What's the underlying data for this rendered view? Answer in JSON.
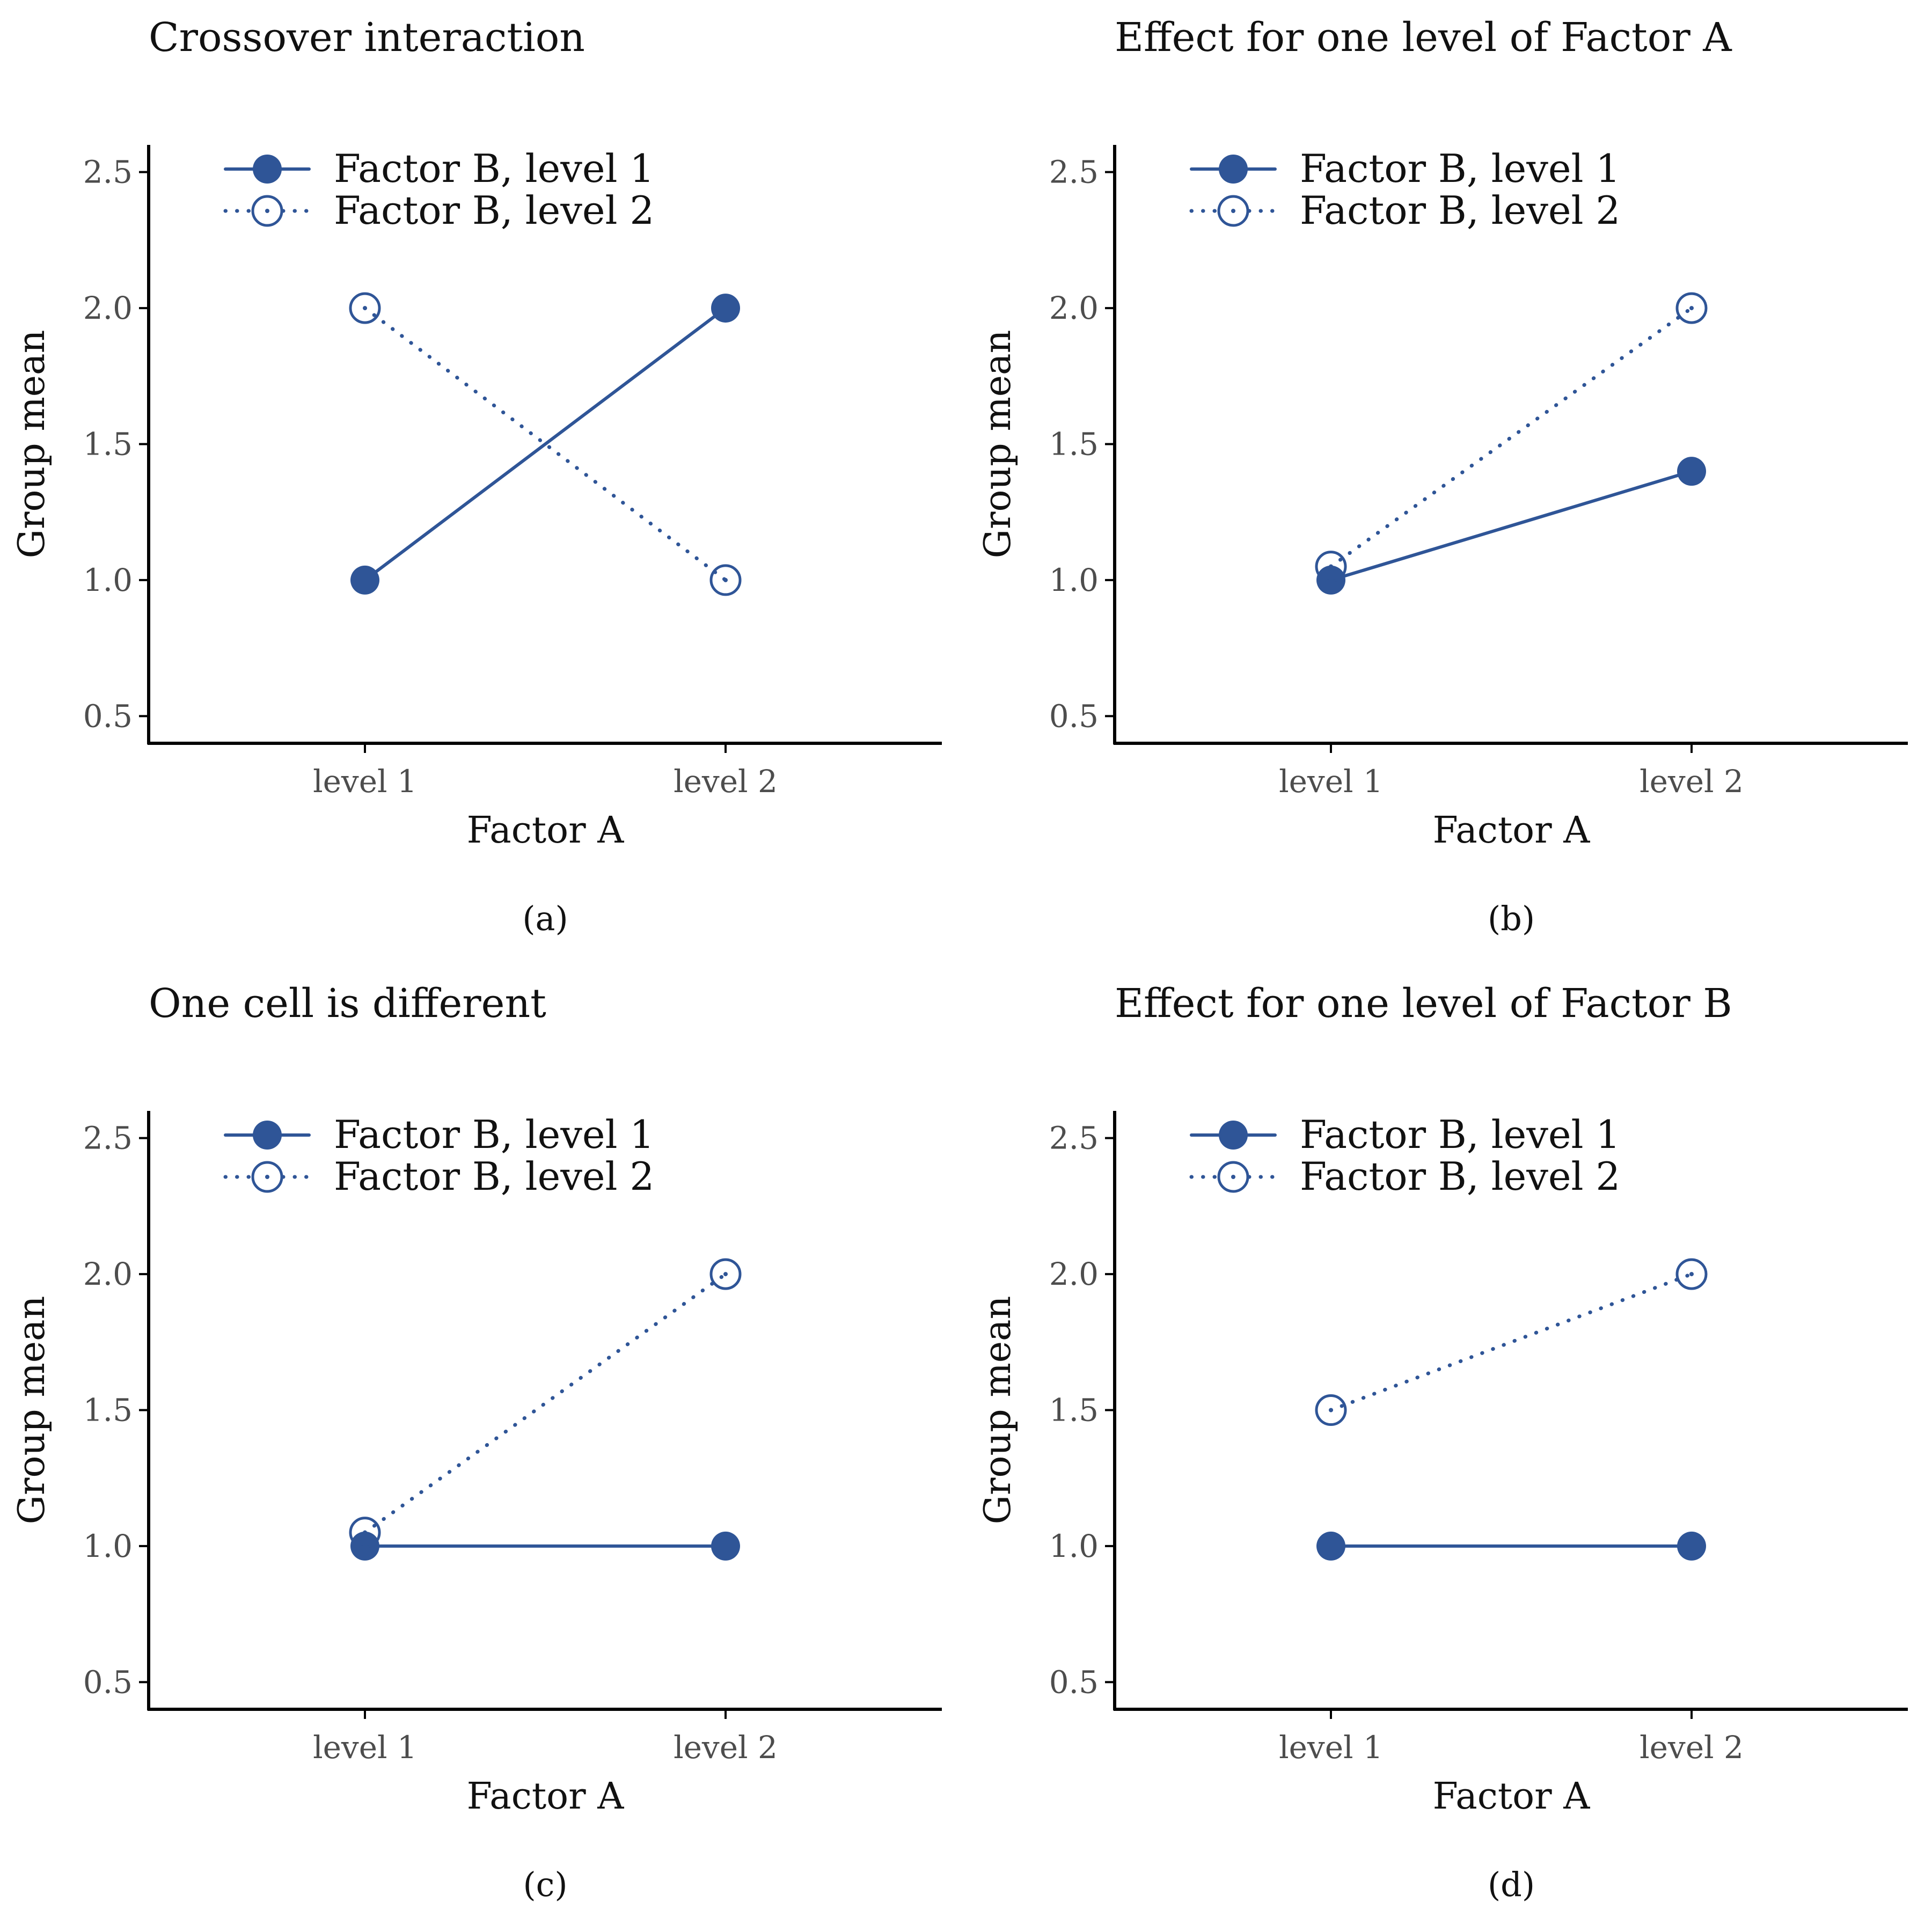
{
  "style": {
    "series_color": "#2f5597",
    "axis_color": "#000000"
  },
  "chart_data": [
    {
      "type": "line",
      "title": "Crossover interaction",
      "caption": "(a)",
      "xlabel": "Factor A",
      "ylabel": "Group mean",
      "categories": [
        "level 1",
        "level 2"
      ],
      "ylim": [
        0.4,
        2.6
      ],
      "yticks": [
        "0.5",
        "1.0",
        "1.5",
        "2.0",
        "2.5"
      ],
      "legend_position": "top-left",
      "series": [
        {
          "name": "Factor B, level 1",
          "values": [
            1.0,
            2.0
          ],
          "line": "solid",
          "marker": "filled-circle"
        },
        {
          "name": "Factor B, level 2",
          "values": [
            2.0,
            1.0
          ],
          "line": "dotted",
          "marker": "open-circle-dot"
        }
      ]
    },
    {
      "type": "line",
      "title": "Effect for one level of Factor A",
      "caption": "(b)",
      "xlabel": "Factor A",
      "ylabel": "Group mean",
      "categories": [
        "level 1",
        "level 2"
      ],
      "ylim": [
        0.4,
        2.6
      ],
      "yticks": [
        "0.5",
        "1.0",
        "1.5",
        "2.0",
        "2.5"
      ],
      "legend_position": "top-left",
      "series": [
        {
          "name": "Factor B, level 1",
          "values": [
            1.0,
            1.4
          ],
          "line": "solid",
          "marker": "filled-circle"
        },
        {
          "name": "Factor B, level 2",
          "values": [
            1.05,
            2.0
          ],
          "line": "dotted",
          "marker": "open-circle-dot"
        }
      ]
    },
    {
      "type": "line",
      "title": "One cell is different",
      "caption": "(c)",
      "xlabel": "Factor A",
      "ylabel": "Group mean",
      "categories": [
        "level 1",
        "level 2"
      ],
      "ylim": [
        0.4,
        2.6
      ],
      "yticks": [
        "0.5",
        "1.0",
        "1.5",
        "2.0",
        "2.5"
      ],
      "legend_position": "top-left",
      "series": [
        {
          "name": "Factor B, level 1",
          "values": [
            1.0,
            1.0
          ],
          "line": "solid",
          "marker": "filled-circle"
        },
        {
          "name": "Factor B, level 2",
          "values": [
            1.05,
            2.0
          ],
          "line": "dotted",
          "marker": "open-circle-dot"
        }
      ]
    },
    {
      "type": "line",
      "title": "Effect for one level of Factor B",
      "caption": "(d)",
      "xlabel": "Factor A",
      "ylabel": "Group mean",
      "categories": [
        "level 1",
        "level 2"
      ],
      "ylim": [
        0.4,
        2.6
      ],
      "yticks": [
        "0.5",
        "1.0",
        "1.5",
        "2.0",
        "2.5"
      ],
      "legend_position": "top-left",
      "series": [
        {
          "name": "Factor B, level 1",
          "values": [
            1.0,
            1.0
          ],
          "line": "solid",
          "marker": "filled-circle"
        },
        {
          "name": "Factor B, level 2",
          "values": [
            1.5,
            2.0
          ],
          "line": "dotted",
          "marker": "open-circle-dot"
        }
      ]
    }
  ]
}
